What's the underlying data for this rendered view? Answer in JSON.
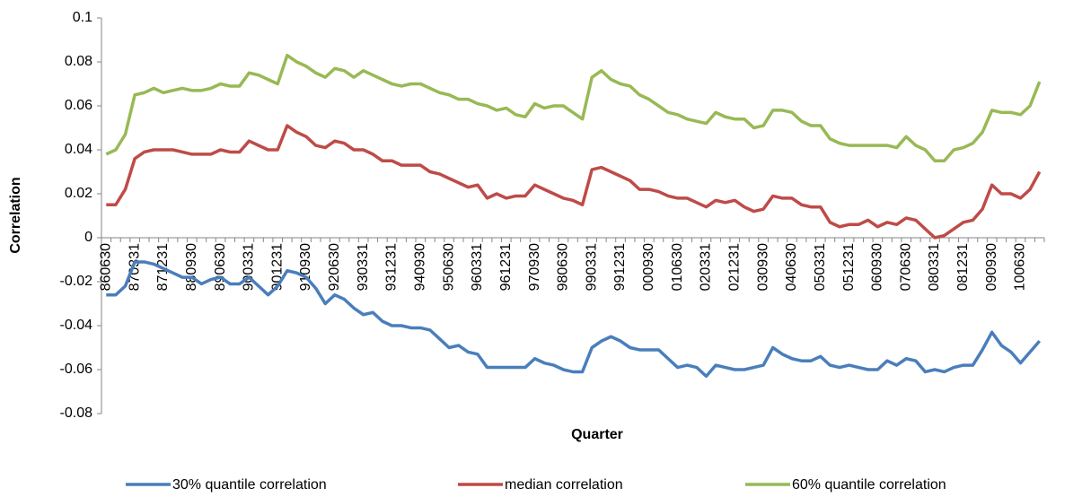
{
  "chart_data": {
    "type": "line",
    "x_label": "Quarter",
    "y_label": "Correlation",
    "categories": [
      "860630",
      null,
      null,
      "870331",
      null,
      null,
      "871231",
      null,
      null,
      "880930",
      null,
      null,
      "890630",
      null,
      null,
      "900331",
      null,
      null,
      "901231",
      null,
      null,
      "910930",
      null,
      null,
      "920630",
      null,
      null,
      "930331",
      null,
      null,
      "931231",
      null,
      null,
      "940930",
      null,
      null,
      "950630",
      null,
      null,
      "960331",
      null,
      null,
      "961231",
      null,
      null,
      "970930",
      null,
      null,
      "980630",
      null,
      null,
      "990331",
      null,
      null,
      "991231",
      null,
      null,
      "000930",
      null,
      null,
      "010630",
      null,
      null,
      "020331",
      null,
      null,
      "021231",
      null,
      null,
      "030930",
      null,
      null,
      "040630",
      null,
      null,
      "050331",
      null,
      null,
      "051231",
      null,
      null,
      "060930",
      null,
      null,
      "070630",
      null,
      null,
      "080331",
      null,
      null,
      "081231",
      null,
      null,
      "090930",
      null,
      null,
      "100630",
      null,
      null
    ],
    "series": [
      {
        "name": "30% quantile correlation",
        "color": "#4a7ebb",
        "values": [
          -0.026,
          -0.026,
          -0.022,
          -0.011,
          -0.011,
          -0.012,
          -0.014,
          -0.016,
          -0.018,
          -0.018,
          -0.021,
          -0.019,
          -0.018,
          -0.021,
          -0.021,
          -0.018,
          -0.022,
          -0.026,
          -0.022,
          -0.015,
          -0.016,
          -0.018,
          -0.023,
          -0.03,
          -0.026,
          -0.028,
          -0.032,
          -0.035,
          -0.034,
          -0.038,
          -0.04,
          -0.04,
          -0.041,
          -0.041,
          -0.042,
          -0.046,
          -0.05,
          -0.049,
          -0.052,
          -0.053,
          -0.059,
          -0.059,
          -0.059,
          -0.059,
          -0.059,
          -0.055,
          -0.057,
          -0.058,
          -0.06,
          -0.061,
          -0.061,
          -0.05,
          -0.047,
          -0.045,
          -0.047,
          -0.05,
          -0.051,
          -0.051,
          -0.051,
          -0.055,
          -0.059,
          -0.058,
          -0.059,
          -0.063,
          -0.058,
          -0.059,
          -0.06,
          -0.06,
          -0.059,
          -0.058,
          -0.05,
          -0.053,
          -0.055,
          -0.056,
          -0.056,
          -0.054,
          -0.058,
          -0.059,
          -0.058,
          -0.059,
          -0.06,
          -0.06,
          -0.056,
          -0.058,
          -0.055,
          -0.056,
          -0.061,
          -0.06,
          -0.061,
          -0.059,
          -0.058,
          -0.058,
          -0.051,
          -0.043,
          -0.049,
          -0.052,
          -0.057,
          -0.052,
          -0.047
        ]
      },
      {
        "name": "median correlation",
        "color": "#be4b48",
        "values": [
          0.015,
          0.015,
          0.022,
          0.036,
          0.039,
          0.04,
          0.04,
          0.04,
          0.039,
          0.038,
          0.038,
          0.038,
          0.04,
          0.039,
          0.039,
          0.044,
          0.042,
          0.04,
          0.04,
          0.051,
          0.048,
          0.046,
          0.042,
          0.041,
          0.044,
          0.043,
          0.04,
          0.04,
          0.038,
          0.035,
          0.035,
          0.033,
          0.033,
          0.033,
          0.03,
          0.029,
          0.027,
          0.025,
          0.023,
          0.024,
          0.018,
          0.02,
          0.018,
          0.019,
          0.019,
          0.024,
          0.022,
          0.02,
          0.018,
          0.017,
          0.015,
          0.031,
          0.032,
          0.03,
          0.028,
          0.026,
          0.022,
          0.022,
          0.021,
          0.019,
          0.018,
          0.018,
          0.016,
          0.014,
          0.017,
          0.016,
          0.017,
          0.014,
          0.012,
          0.013,
          0.019,
          0.018,
          0.018,
          0.015,
          0.014,
          0.014,
          0.007,
          0.005,
          0.006,
          0.006,
          0.008,
          0.005,
          0.007,
          0.006,
          0.009,
          0.008,
          0.004,
          0.0,
          0.001,
          0.004,
          0.007,
          0.008,
          0.013,
          0.024,
          0.02,
          0.02,
          0.018,
          0.022,
          0.03
        ]
      },
      {
        "name": "60% quantile correlation",
        "color": "#98b954",
        "values": [
          0.038,
          0.04,
          0.047,
          0.065,
          0.066,
          0.068,
          0.066,
          0.067,
          0.068,
          0.067,
          0.067,
          0.068,
          0.07,
          0.069,
          0.069,
          0.075,
          0.074,
          0.072,
          0.07,
          0.083,
          0.08,
          0.078,
          0.075,
          0.073,
          0.077,
          0.076,
          0.073,
          0.076,
          0.074,
          0.072,
          0.07,
          0.069,
          0.07,
          0.07,
          0.068,
          0.066,
          0.065,
          0.063,
          0.063,
          0.061,
          0.06,
          0.058,
          0.059,
          0.056,
          0.055,
          0.061,
          0.059,
          0.06,
          0.06,
          0.057,
          0.054,
          0.073,
          0.076,
          0.072,
          0.07,
          0.069,
          0.065,
          0.063,
          0.06,
          0.057,
          0.056,
          0.054,
          0.053,
          0.052,
          0.057,
          0.055,
          0.054,
          0.054,
          0.05,
          0.051,
          0.058,
          0.058,
          0.057,
          0.053,
          0.051,
          0.051,
          0.045,
          0.043,
          0.042,
          0.042,
          0.042,
          0.042,
          0.042,
          0.041,
          0.046,
          0.042,
          0.04,
          0.035,
          0.035,
          0.04,
          0.041,
          0.043,
          0.048,
          0.058,
          0.057,
          0.057,
          0.056,
          0.06,
          0.071
        ]
      }
    ],
    "ylim": [
      -0.08,
      0.1
    ],
    "yticks": [
      -0.08,
      -0.06,
      -0.04,
      -0.02,
      0,
      0.02,
      0.04,
      0.06,
      0.08,
      0.1
    ],
    "grid": false,
    "legend": "bottom"
  }
}
